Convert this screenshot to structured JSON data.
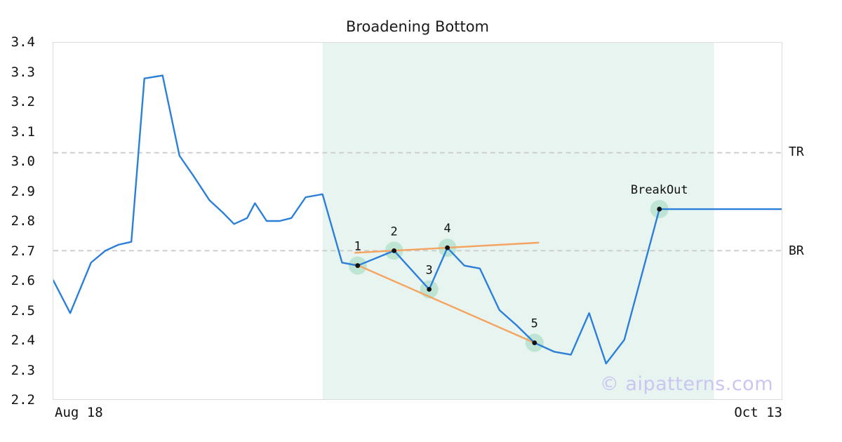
{
  "watermark": "© aipatterns.com",
  "chart_data": {
    "type": "line",
    "title": "Broadening Bottom",
    "x_axis": {
      "start_label": "Aug 18",
      "end_label": "Oct 13",
      "range": [
        0,
        56
      ]
    },
    "y_axis": {
      "min": 2.2,
      "max": 3.4,
      "ticks": [
        "3.4",
        "3.3",
        "3.2",
        "3.1",
        "3.0",
        "2.9",
        "2.8",
        "2.7",
        "2.6",
        "2.5",
        "2.4",
        "2.3",
        "2.2"
      ]
    },
    "series": {
      "name": "price",
      "color": "#2b7fd9",
      "points": [
        [
          0,
          2.6
        ],
        [
          1.3,
          2.49
        ],
        [
          2.9,
          2.66
        ],
        [
          4,
          2.7
        ],
        [
          5,
          2.72
        ],
        [
          6,
          2.73
        ],
        [
          7,
          3.28
        ],
        [
          8.4,
          3.29
        ],
        [
          9.7,
          3.02
        ],
        [
          10.8,
          2.95
        ],
        [
          12,
          2.87
        ],
        [
          13,
          2.83
        ],
        [
          13.9,
          2.79
        ],
        [
          14.9,
          2.81
        ],
        [
          15.5,
          2.86
        ],
        [
          16.4,
          2.8
        ],
        [
          17.4,
          2.8
        ],
        [
          18.3,
          2.81
        ],
        [
          19.4,
          2.88
        ],
        [
          20.7,
          2.89
        ],
        [
          22.2,
          2.66
        ],
        [
          23.4,
          2.65
        ],
        [
          26.2,
          2.7
        ],
        [
          28.9,
          2.57
        ],
        [
          30.3,
          2.71
        ],
        [
          31.6,
          2.65
        ],
        [
          32.8,
          2.64
        ],
        [
          34.3,
          2.5
        ],
        [
          35.6,
          2.45
        ],
        [
          37,
          2.39
        ],
        [
          38.5,
          2.36
        ],
        [
          39.8,
          2.35
        ],
        [
          41.2,
          2.49
        ],
        [
          42.5,
          2.32
        ],
        [
          43.9,
          2.4
        ],
        [
          46.6,
          2.84
        ],
        [
          56,
          2.84
        ]
      ]
    },
    "pattern_region": {
      "x_start": 20.7,
      "x_end": 50.8,
      "color": "#e8f4ef"
    },
    "reference_lines": [
      {
        "label": "TR",
        "value": 3.03
      },
      {
        "label": "BR",
        "value": 2.7
      }
    ],
    "trendlines": [
      {
        "name": "upper",
        "from": [
          23.2,
          2.693
        ],
        "to": [
          37.3,
          2.727
        ],
        "color": "#f4a460"
      },
      {
        "name": "lower",
        "from": [
          23.2,
          2.655
        ],
        "to": [
          37.0,
          2.39
        ],
        "color": "#f4a460"
      }
    ],
    "markers": [
      {
        "label": "1",
        "x": 23.4,
        "y": 2.65
      },
      {
        "label": "2",
        "x": 26.2,
        "y": 2.7
      },
      {
        "label": "3",
        "x": 28.9,
        "y": 2.57
      },
      {
        "label": "4",
        "x": 30.3,
        "y": 2.71
      },
      {
        "label": "5",
        "x": 37.0,
        "y": 2.39
      },
      {
        "label": "BreakOut",
        "x": 46.6,
        "y": 2.84
      }
    ],
    "marker_halo_color": "#b9e3cf",
    "marker_dot_color": "#111111",
    "grid_line_color": "#cccccc"
  }
}
